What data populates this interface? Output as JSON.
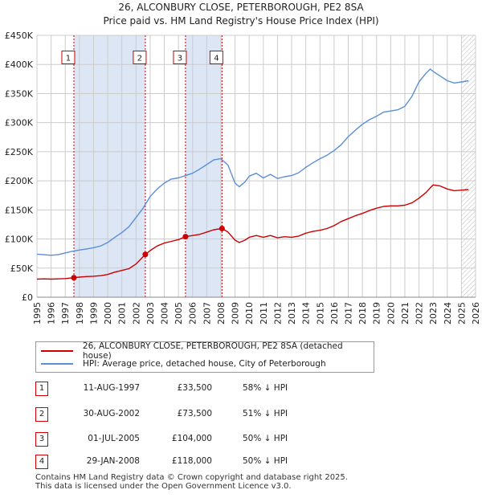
{
  "title_line1": "26, ALCONBURY CLOSE, PETERBOROUGH, PE2 8SA",
  "title_line2": "Price paid vs. HM Land Registry's House Price Index (HPI)",
  "colors": {
    "property": "#cc0000",
    "hpi": "#5b8fd6",
    "shade": "#dce6f5",
    "hatch": "#bbbbbb",
    "grid": "#cccccc"
  },
  "chart_data": {
    "type": "line",
    "title": "26, ALCONBURY CLOSE, PETERBOROUGH, PE2 8SA",
    "subtitle": "Price paid vs. HM Land Registry's House Price Index (HPI)",
    "xlabel": "",
    "ylabel": "",
    "xlim": [
      1995,
      2026
    ],
    "ylim": [
      0,
      450000
    ],
    "y_ticks": [
      0,
      50000,
      100000,
      150000,
      200000,
      250000,
      300000,
      350000,
      400000,
      450000
    ],
    "y_tick_labels": [
      "£0",
      "£50K",
      "£100K",
      "£150K",
      "£200K",
      "£250K",
      "£300K",
      "£350K",
      "£400K",
      "£450K"
    ],
    "x_ticks": [
      1995,
      1996,
      1997,
      1998,
      1999,
      2000,
      2001,
      2002,
      2003,
      2004,
      2005,
      2006,
      2007,
      2008,
      2009,
      2010,
      2011,
      2012,
      2013,
      2014,
      2015,
      2016,
      2017,
      2018,
      2019,
      2020,
      2021,
      2022,
      2023,
      2024,
      2025,
      2026
    ],
    "x_tick_labels": [
      "1995",
      "1996",
      "1997",
      "1998",
      "1999",
      "2000",
      "2001",
      "2002",
      "2003",
      "2004",
      "2005",
      "2006",
      "2007",
      "2008",
      "2009",
      "2010",
      "2011",
      "2012",
      "2013",
      "2014",
      "2015",
      "2016",
      "2017",
      "2018",
      "2019",
      "2020",
      "2021",
      "2022",
      "2023",
      "2024",
      "2025",
      "2026"
    ],
    "grid": true,
    "shaded_ranges": [
      [
        1997.61,
        2002.66
      ],
      [
        2005.5,
        2008.08
      ]
    ],
    "hatched_range": [
      2025.0,
      2026.0
    ],
    "series": [
      {
        "name": "26, ALCONBURY CLOSE, PETERBOROUGH, PE2 8SA (detached house)",
        "color": "#cc0000",
        "x": [
          1995.0,
          1995.5,
          1996.0,
          1996.5,
          1997.0,
          1997.61,
          1998.0,
          1998.5,
          1999.0,
          1999.5,
          2000.0,
          2000.5,
          2001.0,
          2001.5,
          2002.0,
          2002.66,
          2003.0,
          2003.5,
          2004.0,
          2004.5,
          2005.0,
          2005.5,
          2006.0,
          2006.5,
          2007.0,
          2007.5,
          2008.08,
          2008.5,
          2009.0,
          2009.3,
          2009.7,
          2010.0,
          2010.5,
          2011.0,
          2011.5,
          2012.0,
          2012.5,
          2013.0,
          2013.5,
          2014.0,
          2014.5,
          2015.0,
          2015.5,
          2016.0,
          2016.5,
          2017.0,
          2017.5,
          2018.0,
          2018.5,
          2019.0,
          2019.5,
          2020.0,
          2020.5,
          2021.0,
          2021.5,
          2022.0,
          2022.5,
          2022.8,
          2023.0,
          2023.5,
          2024.0,
          2024.5,
          2025.0,
          2025.5
        ],
        "values": [
          31000,
          31500,
          31000,
          31500,
          32000,
          33500,
          34500,
          35500,
          36000,
          37000,
          39000,
          43000,
          46000,
          49000,
          57000,
          73500,
          80000,
          88000,
          93000,
          96000,
          99000,
          104000,
          106000,
          108000,
          112000,
          116000,
          118000,
          112000,
          98000,
          94000,
          98000,
          103000,
          106000,
          103000,
          106000,
          102000,
          104000,
          103000,
          105000,
          110000,
          113000,
          115000,
          118000,
          123000,
          130000,
          135000,
          140000,
          144000,
          149000,
          153000,
          156000,
          157000,
          157000,
          158000,
          162000,
          170000,
          180000,
          188000,
          193000,
          191000,
          186000,
          183000,
          184000,
          185000
        ]
      },
      {
        "name": "HPI: Average price, detached house, City of Peterborough",
        "color": "#5b8fd6",
        "x": [
          1995.0,
          1995.5,
          1996.0,
          1996.5,
          1997.0,
          1997.5,
          1998.0,
          1998.5,
          1999.0,
          1999.5,
          2000.0,
          2000.5,
          2001.0,
          2001.5,
          2002.0,
          2002.5,
          2003.0,
          2003.5,
          2004.0,
          2004.5,
          2005.0,
          2005.5,
          2006.0,
          2006.5,
          2007.0,
          2007.5,
          2008.0,
          2008.5,
          2009.0,
          2009.3,
          2009.7,
          2010.0,
          2010.5,
          2011.0,
          2011.5,
          2012.0,
          2012.5,
          2013.0,
          2013.5,
          2014.0,
          2014.5,
          2015.0,
          2015.5,
          2016.0,
          2016.5,
          2017.0,
          2017.5,
          2018.0,
          2018.5,
          2019.0,
          2019.5,
          2020.0,
          2020.5,
          2021.0,
          2021.5,
          2022.0,
          2022.5,
          2022.8,
          2023.0,
          2023.5,
          2024.0,
          2024.5,
          2025.0,
          2025.5
        ],
        "values": [
          74000,
          73000,
          72000,
          73000,
          76000,
          79000,
          81000,
          83000,
          85000,
          88000,
          94000,
          103000,
          111000,
          121000,
          137000,
          153000,
          173000,
          186000,
          196000,
          203000,
          205000,
          209000,
          213000,
          220000,
          228000,
          236000,
          238000,
          227000,
          196000,
          190000,
          198000,
          208000,
          213000,
          205000,
          211000,
          204000,
          207000,
          209000,
          214000,
          223000,
          231000,
          238000,
          244000,
          252000,
          262000,
          276000,
          287000,
          297000,
          305000,
          311000,
          318000,
          320000,
          322000,
          328000,
          345000,
          370000,
          385000,
          392000,
          388000,
          380000,
          372000,
          368000,
          370000,
          372000
        ]
      }
    ],
    "sales": [
      {
        "label": "1",
        "x": 1997.61,
        "value": 33500
      },
      {
        "label": "2",
        "x": 2002.66,
        "value": 73500
      },
      {
        "label": "3",
        "x": 2005.5,
        "value": 104000
      },
      {
        "label": "4",
        "x": 2008.08,
        "value": 118000
      }
    ],
    "marker_box_value": 412000,
    "legend_position": "below"
  },
  "legend": {
    "property_label": "26, ALCONBURY CLOSE, PETERBOROUGH, PE2 8SA (detached house)",
    "hpi_label": "HPI: Average price, detached house, City of Peterborough"
  },
  "transactions": [
    {
      "num": "1",
      "date": "11-AUG-1997",
      "price": "£33,500",
      "hpi": "58% ↓ HPI"
    },
    {
      "num": "2",
      "date": "30-AUG-2002",
      "price": "£73,500",
      "hpi": "51% ↓ HPI"
    },
    {
      "num": "3",
      "date": "01-JUL-2005",
      "price": "£104,000",
      "hpi": "50% ↓ HPI"
    },
    {
      "num": "4",
      "date": "29-JAN-2008",
      "price": "£118,000",
      "hpi": "50% ↓ HPI"
    }
  ],
  "footer": {
    "line1": "Contains HM Land Registry data © Crown copyright and database right 2025.",
    "line2": "This data is licensed under the Open Government Licence v3.0."
  }
}
